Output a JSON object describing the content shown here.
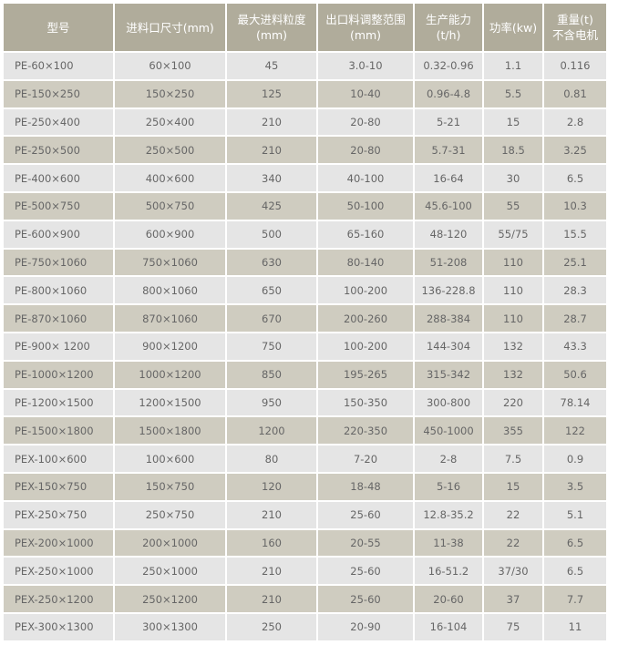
{
  "headers": [
    {
      "line1": "型号",
      "line2": ""
    },
    {
      "line1": "进料口尺寸(mm)",
      "line2": ""
    },
    {
      "line1": "最大进料粒度",
      "line2": "(mm)"
    },
    {
      "line1": "出口料调整范围",
      "line2": "(mm)"
    },
    {
      "line1": "生产能力",
      "line2": "(t/h)"
    },
    {
      "line1": "功率(kw)",
      "line2": ""
    },
    {
      "line1": "重量(t)",
      "line2": "不含电机"
    }
  ],
  "rows": [
    [
      "PE-60×100",
      "60×100",
      "45",
      "3.0-10",
      "0.32-0.96",
      "1.1",
      "0.116"
    ],
    [
      "PE-150×250",
      "150×250",
      "125",
      "10-40",
      "0.96-4.8",
      "5.5",
      "0.81"
    ],
    [
      "PE-250×400",
      "250×400",
      "210",
      "20-80",
      "5-21",
      "15",
      "2.8"
    ],
    [
      "PE-250×500",
      "250×500",
      "210",
      "20-80",
      "5.7-31",
      "18.5",
      "3.25"
    ],
    [
      "PE-400×600",
      "400×600",
      "340",
      "40-100",
      "16-64",
      "30",
      "6.5"
    ],
    [
      "PE-500×750",
      "500×750",
      "425",
      "50-100",
      "45.6-100",
      "55",
      "10.3"
    ],
    [
      "PE-600×900",
      "600×900",
      "500",
      "65-160",
      "48-120",
      "55/75",
      "15.5"
    ],
    [
      "PE-750×1060",
      "750×1060",
      "630",
      "80-140",
      "51-208",
      "110",
      "25.1"
    ],
    [
      "PE-800×1060",
      "800×1060",
      "650",
      "100-200",
      "136-228.8",
      "110",
      "28.3"
    ],
    [
      "PE-870×1060",
      "870×1060",
      "670",
      "200-260",
      "288-384",
      "110",
      "28.7"
    ],
    [
      "PE-900× 1200",
      "900×1200",
      "750",
      "100-200",
      "144-304",
      "132",
      "43.3"
    ],
    [
      "PE-1000×1200",
      "1000×1200",
      "850",
      "195-265",
      "315-342",
      "132",
      "50.6"
    ],
    [
      "PE-1200×1500",
      "1200×1500",
      "950",
      "150-350",
      "300-800",
      "220",
      "78.14"
    ],
    [
      "PE-1500×1800",
      "1500×1800",
      "1200",
      "220-350",
      "450-1000",
      "355",
      "122"
    ],
    [
      "PEX-100×600",
      "100×600",
      "80",
      "7-20",
      "2-8",
      "7.5",
      "0.9"
    ],
    [
      "PEX-150×750",
      "150×750",
      "120",
      "18-48",
      "5-16",
      "15",
      "3.5"
    ],
    [
      "PEX-250×750",
      "250×750",
      "210",
      "25-60",
      "12.8-35.2",
      "22",
      "5.1"
    ],
    [
      "PEX-200×1000",
      "200×1000",
      "160",
      "20-55",
      "11-38",
      "22",
      "6.5"
    ],
    [
      "PEX-250×1000",
      "250×1000",
      "210",
      "25-60",
      "16-51.2",
      "37/30",
      "6.5"
    ],
    [
      "PEX-250×1200",
      "250×1200",
      "210",
      "25-60",
      "20-60",
      "37",
      "7.7"
    ],
    [
      "PEX-300×1300",
      "300×1300",
      "250",
      "20-90",
      "16-104",
      "75",
      "11"
    ]
  ],
  "colors": {
    "header": "#b0ac9b",
    "row_odd": "#e5e5e5",
    "row_even": "#cfccc0",
    "text": "#666666"
  }
}
